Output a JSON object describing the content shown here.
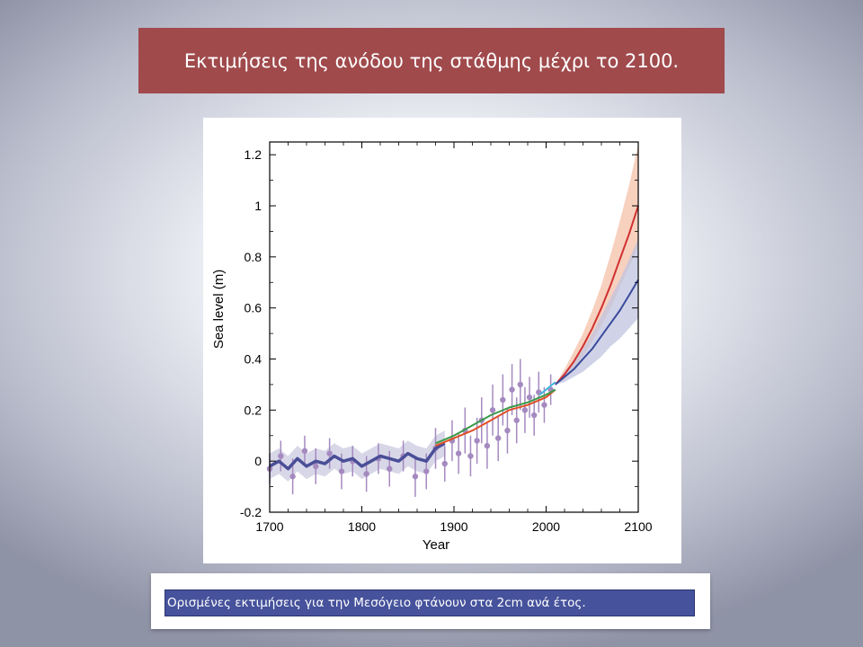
{
  "slide": {
    "title": "Εκτιμήσεις της ανόδου της στάθμης μέχρι το 2100.",
    "caption": "Ορισμένες εκτιμήσεις για την Μεσόγειο φτάνουν στα  2cm ανά έτος.",
    "colors": {
      "title_bg": "#a04a4c",
      "caption_bg": "#46529b"
    }
  },
  "chart_data": {
    "type": "line",
    "title": "",
    "xlabel": "Year",
    "ylabel": "Sea  level (m)",
    "xlim": [
      1700,
      2100
    ],
    "ylim": [
      -0.2,
      1.25
    ],
    "xticks": [
      1700,
      1800,
      1900,
      2000,
      2100
    ],
    "yticks": [
      -0.2,
      0,
      0.2,
      0.4,
      0.6,
      0.8,
      1,
      1.2
    ],
    "ytick_labels": [
      "-0.2",
      "0",
      "0.2",
      "0.4",
      "0.6",
      "0.8",
      "1",
      "1.2"
    ],
    "grid": false,
    "series": [
      {
        "key": "reconstruction",
        "color": "#4a4e97",
        "band_color": "#c9c9e0",
        "x": [
          1700,
          1710,
          1720,
          1730,
          1740,
          1750,
          1760,
          1770,
          1780,
          1790,
          1800,
          1810,
          1820,
          1830,
          1840,
          1850,
          1860,
          1870,
          1880,
          1890
        ],
        "y": [
          -0.02,
          0.0,
          -0.03,
          0.01,
          -0.02,
          0.0,
          -0.01,
          0.02,
          0.0,
          0.01,
          -0.02,
          0.0,
          0.02,
          0.01,
          0.0,
          0.03,
          0.01,
          0.0,
          0.05,
          0.07
        ]
      },
      {
        "key": "tide-gauge-1",
        "color": "#e0502a",
        "x": [
          1880,
          1900,
          1920,
          1940,
          1960,
          1980,
          2000,
          2010
        ],
        "y": [
          0.06,
          0.09,
          0.12,
          0.16,
          0.2,
          0.22,
          0.25,
          0.28
        ]
      },
      {
        "key": "tide-gauge-2",
        "color": "#3a9a4a",
        "x": [
          1880,
          1900,
          1920,
          1940,
          1960,
          1980,
          2000,
          2010
        ],
        "y": [
          0.07,
          0.1,
          0.14,
          0.18,
          0.21,
          0.23,
          0.26,
          0.28
        ]
      },
      {
        "key": "satellite",
        "color": "#40b8e0",
        "x": [
          1993,
          2000,
          2010
        ],
        "y": [
          0.26,
          0.28,
          0.31
        ]
      },
      {
        "key": "projection-high",
        "color": "#d03030",
        "band_color": "#f4c0a8",
        "x": [
          2010,
          2020,
          2030,
          2040,
          2050,
          2060,
          2070,
          2080,
          2090,
          2100
        ],
        "y": [
          0.3,
          0.34,
          0.39,
          0.45,
          0.52,
          0.6,
          0.69,
          0.79,
          0.89,
          1.0
        ],
        "lower": [
          0.3,
          0.32,
          0.36,
          0.41,
          0.47,
          0.53,
          0.6,
          0.68,
          0.76,
          0.84
        ],
        "upper": [
          0.3,
          0.36,
          0.43,
          0.5,
          0.59,
          0.69,
          0.81,
          0.94,
          1.08,
          1.24
        ]
      },
      {
        "key": "projection-low",
        "color": "#3a4a9c",
        "band_color": "#c0c4e0",
        "x": [
          2010,
          2020,
          2030,
          2040,
          2050,
          2060,
          2070,
          2080,
          2090,
          2100
        ],
        "y": [
          0.3,
          0.33,
          0.36,
          0.4,
          0.44,
          0.49,
          0.54,
          0.59,
          0.65,
          0.71
        ],
        "lower": [
          0.3,
          0.31,
          0.33,
          0.35,
          0.38,
          0.41,
          0.45,
          0.48,
          0.52,
          0.56
        ],
        "upper": [
          0.3,
          0.35,
          0.39,
          0.44,
          0.5,
          0.57,
          0.64,
          0.71,
          0.79,
          0.87
        ]
      }
    ],
    "proxy_points": {
      "color": "#a58ac0",
      "x": [
        1700,
        1712,
        1725,
        1738,
        1750,
        1765,
        1778,
        1790,
        1805,
        1818,
        1830,
        1845,
        1858,
        1870,
        1880,
        1890,
        1898,
        1905,
        1912,
        1918,
        1925,
        1930,
        1936,
        1942,
        1948,
        1953,
        1958,
        1963,
        1968,
        1972,
        1977,
        1982,
        1987,
        1992,
        1998,
        2005
      ],
      "y": [
        -0.03,
        0.02,
        -0.06,
        0.04,
        -0.02,
        0.03,
        -0.04,
        0.0,
        -0.05,
        0.01,
        -0.03,
        0.02,
        -0.06,
        -0.04,
        0.05,
        -0.01,
        0.08,
        0.03,
        0.12,
        0.02,
        0.08,
        0.16,
        0.06,
        0.2,
        0.09,
        0.24,
        0.12,
        0.28,
        0.16,
        0.3,
        0.2,
        0.25,
        0.18,
        0.27,
        0.22,
        0.28
      ],
      "err": [
        0.06,
        0.06,
        0.07,
        0.06,
        0.07,
        0.06,
        0.07,
        0.06,
        0.07,
        0.06,
        0.07,
        0.06,
        0.08,
        0.07,
        0.08,
        0.07,
        0.08,
        0.08,
        0.09,
        0.08,
        0.09,
        0.09,
        0.09,
        0.1,
        0.09,
        0.1,
        0.09,
        0.1,
        0.09,
        0.1,
        0.09,
        0.08,
        0.08,
        0.08,
        0.07,
        0.06
      ]
    }
  }
}
